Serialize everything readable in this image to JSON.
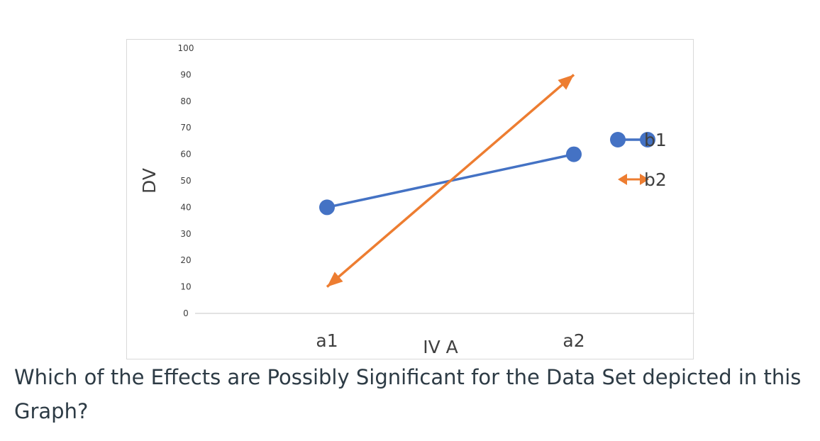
{
  "chart_data": {
    "type": "line",
    "xlabel": "IV A",
    "ylabel": "DV",
    "categories": [
      "a1",
      "a2"
    ],
    "yticks": [
      "0",
      "10",
      "20",
      "30",
      "40",
      "50",
      "60",
      "70",
      "80",
      "90",
      "100"
    ],
    "ylim": [
      0,
      100
    ],
    "grid": false,
    "legend_position": "right",
    "series": [
      {
        "name": "b1",
        "values": [
          40,
          60
        ],
        "color": "#4472c4",
        "marker": "circle"
      },
      {
        "name": "b2",
        "values": [
          10,
          90
        ],
        "color": "#ed7d31",
        "marker": "arrow"
      }
    ]
  },
  "question": "Which of the Effects are Possibly Significant for the Data Set depicted in this Graph?"
}
